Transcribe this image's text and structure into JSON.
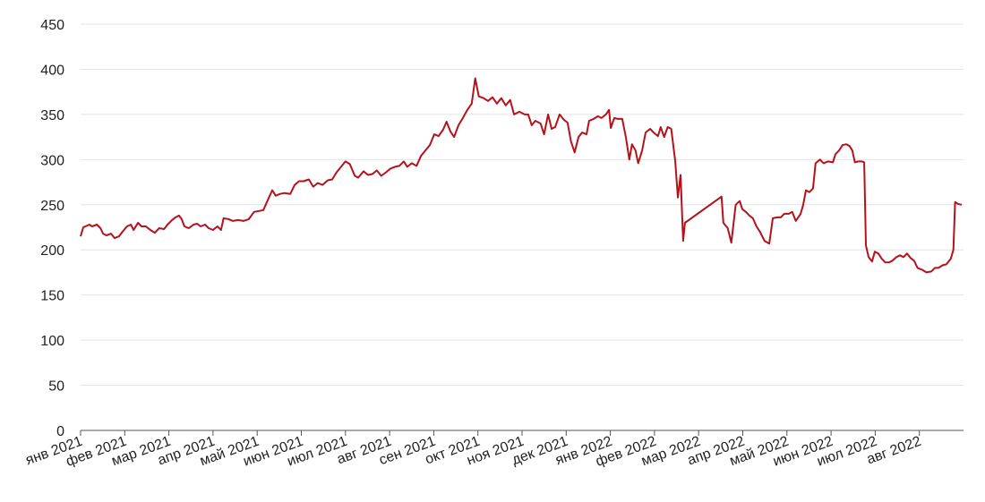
{
  "chart_data": {
    "type": "line",
    "x": [
      0,
      0.06,
      0.2,
      0.26,
      0.37,
      0.45,
      0.51,
      0.59,
      0.69,
      0.77,
      0.87,
      0.95,
      1.05,
      1.14,
      1.2,
      1.3,
      1.38,
      1.48,
      1.58,
      1.68,
      1.78,
      1.89,
      1.97,
      2.07,
      2.15,
      2.23,
      2.29,
      2.35,
      2.45,
      2.56,
      2.64,
      2.72,
      2.82,
      2.9,
      3.0,
      3.1,
      3.18,
      3.24,
      3.35,
      3.45,
      3.57,
      3.69,
      3.81,
      3.93,
      4.04,
      4.14,
      4.24,
      4.34,
      4.42,
      4.52,
      4.62,
      4.75,
      4.85,
      4.95,
      5.05,
      5.17,
      5.27,
      5.37,
      5.48,
      5.6,
      5.7,
      5.8,
      5.9,
      6.0,
      6.1,
      6.21,
      6.29,
      6.41,
      6.51,
      6.61,
      6.71,
      6.81,
      6.92,
      7.02,
      7.12,
      7.22,
      7.32,
      7.4,
      7.5,
      7.61,
      7.71,
      7.81,
      7.91,
      8.01,
      8.11,
      8.21,
      8.29,
      8.38,
      8.46,
      8.56,
      8.66,
      8.76,
      8.86,
      8.94,
      9.02,
      9.13,
      9.23,
      9.33,
      9.43,
      9.53,
      9.63,
      9.73,
      9.82,
      9.94,
      10.06,
      10.14,
      10.22,
      10.3,
      10.42,
      10.5,
      10.59,
      10.67,
      10.75,
      10.85,
      10.95,
      11.03,
      11.11,
      11.19,
      11.28,
      11.36,
      11.46,
      11.52,
      11.62,
      11.72,
      11.8,
      11.9,
      11.97,
      12.01,
      12.09,
      12.17,
      12.27,
      12.35,
      12.43,
      12.49,
      12.57,
      12.63,
      12.72,
      12.8,
      12.9,
      12.98,
      13.08,
      13.14,
      13.22,
      13.3,
      13.38,
      13.47,
      13.53,
      13.59,
      13.65,
      13.69,
      14.52,
      14.56,
      14.66,
      14.74,
      14.84,
      14.93,
      14.99,
      15.07,
      15.15,
      15.23,
      15.31,
      15.39,
      15.49,
      15.6,
      15.68,
      15.78,
      15.86,
      15.94,
      16.04,
      16.12,
      16.2,
      16.31,
      16.37,
      16.43,
      16.51,
      16.59,
      16.65,
      16.75,
      16.83,
      16.93,
      17.04,
      17.1,
      17.18,
      17.26,
      17.34,
      17.42,
      17.48,
      17.54,
      17.62,
      17.7,
      17.75,
      17.79,
      17.85,
      17.93,
      17.99,
      18.07,
      18.15,
      18.23,
      18.31,
      18.39,
      18.48,
      18.56,
      18.64,
      18.72,
      18.8,
      18.88,
      18.96,
      19.06,
      19.16,
      19.27,
      19.35,
      19.43,
      19.53,
      19.61,
      19.71,
      19.77,
      19.81,
      19.87,
      19.96
    ],
    "series": [
      {
        "color": "#b5121b",
        "values": [
          215,
          225,
          228,
          226,
          228,
          224,
          218,
          216,
          218,
          213,
          215,
          220,
          226,
          228,
          222,
          230,
          226,
          226,
          222,
          219,
          224,
          223,
          228,
          233,
          236,
          238,
          234,
          226,
          224,
          228,
          229,
          226,
          228,
          224,
          222,
          226,
          222,
          235,
          234,
          232,
          233,
          232,
          234,
          242,
          243,
          244,
          255,
          266,
          260,
          262,
          263,
          262,
          272,
          276,
          276,
          278,
          270,
          274,
          272,
          277,
          278,
          286,
          292,
          298,
          295,
          282,
          280,
          287,
          283,
          284,
          288,
          282,
          286,
          290,
          292,
          293,
          298,
          292,
          296,
          293,
          304,
          310,
          316,
          328,
          326,
          333,
          342,
          331,
          325,
          338,
          346,
          355,
          362,
          390,
          370,
          368,
          365,
          369,
          362,
          368,
          360,
          366,
          350,
          353,
          350,
          350,
          338,
          343,
          340,
          328,
          350,
          334,
          336,
          350,
          344,
          341,
          320,
          308,
          325,
          330,
          328,
          343,
          345,
          348,
          346,
          350,
          355,
          335,
          346,
          345,
          345,
          325,
          300,
          317,
          310,
          296,
          310,
          330,
          334,
          330,
          326,
          336,
          325,
          336,
          334,
          298,
          258,
          283,
          210,
          230,
          259,
          230,
          224,
          208,
          250,
          254,
          245,
          242,
          238,
          235,
          226,
          220,
          210,
          207,
          235,
          236,
          236,
          240,
          240,
          242,
          232,
          240,
          250,
          266,
          264,
          268,
          296,
          300,
          296,
          298,
          297,
          306,
          310,
          316,
          317,
          315,
          310,
          297,
          298,
          298,
          297,
          205,
          192,
          187,
          198,
          196,
          190,
          186,
          186,
          188,
          192,
          194,
          192,
          196,
          191,
          188,
          180,
          178,
          175,
          176,
          180,
          180,
          183,
          184,
          190,
          200,
          253,
          251,
          250
        ]
      }
    ],
    "xlim": [
      0,
      20
    ],
    "xticks": [
      {
        "value": 0,
        "label": "янв 2021"
      },
      {
        "value": 1,
        "label": "фев 2021"
      },
      {
        "value": 2,
        "label": "мар 2021"
      },
      {
        "value": 3,
        "label": "апр 2021"
      },
      {
        "value": 4,
        "label": "май 2021"
      },
      {
        "value": 5,
        "label": "июн 2021"
      },
      {
        "value": 6,
        "label": "июл 2021"
      },
      {
        "value": 7,
        "label": "авг 2021"
      },
      {
        "value": 8,
        "label": "сен 2021"
      },
      {
        "value": 9,
        "label": "окт 2021"
      },
      {
        "value": 10,
        "label": "ноя 2021"
      },
      {
        "value": 11,
        "label": "дек 2021"
      },
      {
        "value": 12,
        "label": "янв 2022"
      },
      {
        "value": 13,
        "label": "фев 2022"
      },
      {
        "value": 14,
        "label": "мар 2022"
      },
      {
        "value": 15,
        "label": "апр 2022"
      },
      {
        "value": 16,
        "label": "май 2022"
      },
      {
        "value": 17,
        "label": "июн 2022"
      },
      {
        "value": 18,
        "label": "июл 2022"
      },
      {
        "value": 19,
        "label": "авг 2022"
      }
    ],
    "ylim": [
      0,
      450
    ],
    "yticks": [
      0,
      50,
      100,
      150,
      200,
      250,
      300,
      350,
      400,
      450
    ],
    "grid": true
  }
}
